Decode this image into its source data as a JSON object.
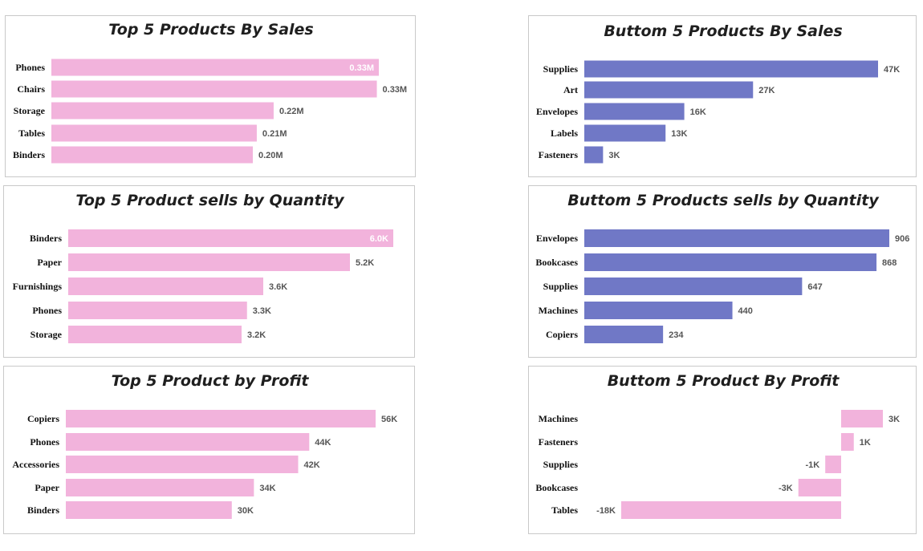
{
  "colors": {
    "pink": "#f2b3dc",
    "blue": "#7078c6"
  },
  "chart_data": [
    {
      "type": "bar",
      "orientation": "horizontal",
      "title": "Top 5 Products By Sales",
      "categories": [
        "Phones",
        "Chairs",
        "Storage",
        "Tables",
        "Binders"
      ],
      "values": [
        330000,
        328000,
        224000,
        207000,
        203000
      ],
      "labels": [
        "0.33M",
        "0.33M",
        "0.22M",
        "0.21M",
        "0.20M"
      ],
      "color": "#f2b3dc"
    },
    {
      "type": "bar",
      "orientation": "horizontal",
      "title": "Buttom 5 Products By Sales",
      "categories": [
        "Supplies",
        "Art",
        "Envelopes",
        "Labels",
        "Fasteners"
      ],
      "values": [
        47000,
        27000,
        16000,
        13000,
        3000
      ],
      "labels": [
        "47K",
        "27K",
        "16K",
        "13K",
        "3K"
      ],
      "color": "#7078c6"
    },
    {
      "type": "bar",
      "orientation": "horizontal",
      "title": "Top 5 Product sells by Quantity",
      "categories": [
        "Binders",
        "Paper",
        "Furnishings",
        "Phones",
        "Storage"
      ],
      "values": [
        6000,
        5200,
        3600,
        3300,
        3200
      ],
      "labels": [
        "6.0K",
        "5.2K",
        "3.6K",
        "3.3K",
        "3.2K"
      ],
      "color": "#f2b3dc"
    },
    {
      "type": "bar",
      "orientation": "horizontal",
      "title": "Buttom 5 Products sells by Quantity",
      "categories": [
        "Envelopes",
        "Bookcases",
        "Supplies",
        "Machines",
        "Copiers"
      ],
      "values": [
        906,
        868,
        647,
        440,
        234
      ],
      "labels": [
        "906",
        "868",
        "647",
        "440",
        "234"
      ],
      "color": "#7078c6"
    },
    {
      "type": "bar",
      "orientation": "horizontal",
      "title": "Top 5 Product by Profit",
      "categories": [
        "Copiers",
        "Phones",
        "Accessories",
        "Paper",
        "Binders"
      ],
      "values": [
        56000,
        44000,
        42000,
        34000,
        30000
      ],
      "labels": [
        "56K",
        "44K",
        "42K",
        "34K",
        "30K"
      ],
      "color": "#f2b3dc"
    },
    {
      "type": "bar",
      "orientation": "horizontal",
      "title": "Buttom 5 Product By Profit",
      "categories": [
        "Machines",
        "Fasteners",
        "Supplies",
        "Bookcases",
        "Tables"
      ],
      "values": [
        3300,
        1000,
        -1300,
        -3500,
        -18000
      ],
      "labels": [
        "3K",
        "1K",
        "-1K",
        "-3K",
        "-18K"
      ],
      "color": "#f2b3dc"
    }
  ]
}
